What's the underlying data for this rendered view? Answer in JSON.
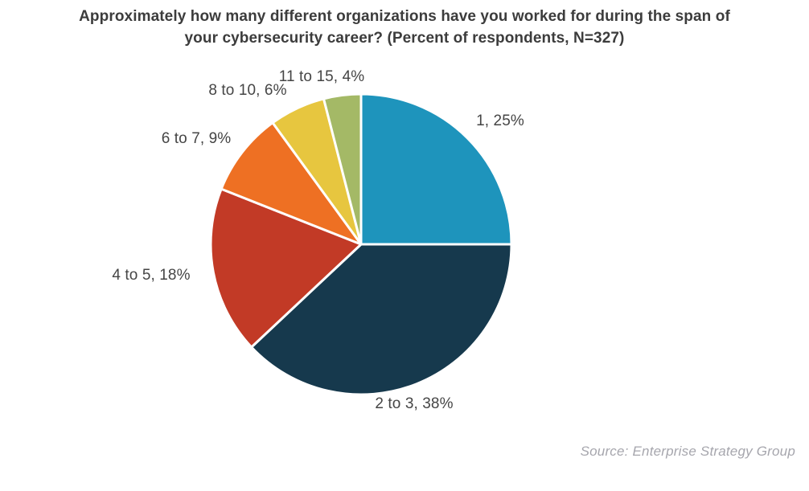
{
  "chart_data": {
    "type": "pie",
    "title": "Approximately how many different organizations have you worked for during the span of your cybersecurity career? (Percent of respondents, N=327)",
    "title_lines": [
      "Approximately how many different organizations have you worked for during the span of",
      "your cybersecurity career? (Percent of respondents, N=327)"
    ],
    "categories": [
      "1",
      "2 to 3",
      "4 to 5",
      "6 to 7",
      "8 to 10",
      "11 to 15"
    ],
    "values": [
      25,
      38,
      18,
      9,
      6,
      4
    ],
    "unit": "%",
    "label_format": "{category}, {value}%",
    "colors": [
      "#1e94bc",
      "#16394d",
      "#c23a26",
      "#ee7023",
      "#e7c63f",
      "#a4b966"
    ],
    "slice_border_color": "#ffffff",
    "start_angle_deg": 0,
    "direction": "clockwise",
    "legend": "none",
    "labels_position": "outside"
  },
  "source": "Source: Enterprise Strategy Group"
}
